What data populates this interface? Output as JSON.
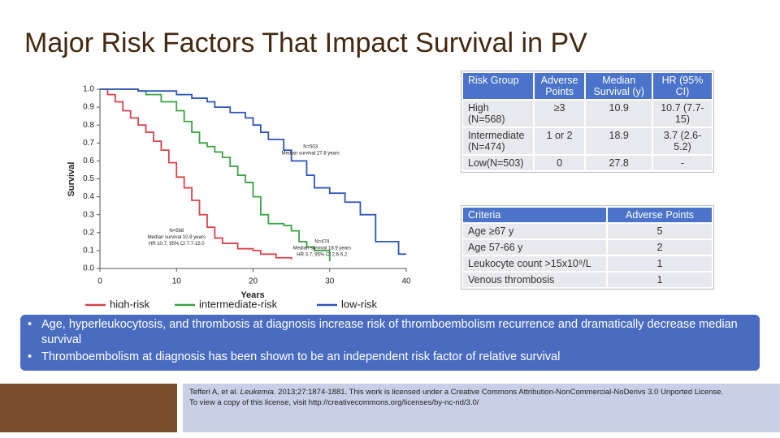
{
  "title": "Major Risk Factors That Impact Survival in PV",
  "chart_data": {
    "type": "line",
    "y_label": "Survival",
    "x_label": "Years",
    "xlim": [
      0,
      40
    ],
    "ylim": [
      0,
      1
    ],
    "xticks": [
      0,
      10,
      20,
      30,
      40
    ],
    "yticks": [
      {
        "value": 0,
        "label": "0.0"
      },
      {
        "value": 0.1,
        "label": "0.1"
      },
      {
        "value": 0.2,
        "label": "0.2"
      },
      {
        "value": 0.3,
        "label": "0.3"
      },
      {
        "value": 0.4,
        "label": "0.4"
      },
      {
        "value": 0.5,
        "label": "0.5"
      },
      {
        "value": 0.6,
        "label": "0.6"
      },
      {
        "value": 0.7,
        "label": "0.7"
      },
      {
        "value": 0.8,
        "label": "0.8"
      },
      {
        "value": 0.9,
        "label": "0.9"
      },
      {
        "value": 1,
        "label": "1.0"
      }
    ],
    "series": [
      {
        "name": "high-risk",
        "color": "#d9434b",
        "x": [
          0,
          1,
          2,
          3,
          4,
          5,
          6,
          7,
          8,
          9,
          10,
          11,
          12,
          13,
          14,
          15,
          16,
          18,
          20,
          21,
          23,
          25
        ],
        "values": [
          1,
          0.97,
          0.93,
          0.88,
          0.84,
          0.8,
          0.76,
          0.71,
          0.66,
          0.59,
          0.51,
          0.45,
          0.38,
          0.3,
          0.23,
          0.17,
          0.14,
          0.11,
          0.1,
          0.08,
          0.06,
          0.05
        ]
      },
      {
        "name": "intermediate-risk",
        "color": "#3aa346",
        "x": [
          0,
          5,
          6,
          8,
          10,
          11,
          12,
          13,
          14,
          15,
          16,
          17,
          18,
          19,
          20,
          21,
          22,
          24,
          25,
          26,
          27,
          28,
          30
        ],
        "values": [
          1,
          0.99,
          0.97,
          0.93,
          0.88,
          0.82,
          0.76,
          0.7,
          0.68,
          0.65,
          0.62,
          0.57,
          0.52,
          0.48,
          0.4,
          0.3,
          0.25,
          0.24,
          0.21,
          0.15,
          0.12,
          0.1,
          0.04
        ]
      },
      {
        "name": "low-risk",
        "color": "#2f55b8",
        "x": [
          0,
          5,
          10,
          12,
          14,
          15,
          17,
          19,
          20,
          21,
          22,
          24,
          25,
          27,
          28,
          30,
          32,
          34,
          36,
          38,
          39,
          40
        ],
        "values": [
          1,
          0.99,
          0.97,
          0.95,
          0.93,
          0.9,
          0.87,
          0.84,
          0.8,
          0.76,
          0.72,
          0.66,
          0.6,
          0.52,
          0.45,
          0.42,
          0.37,
          0.3,
          0.15,
          0.15,
          0.08,
          0.08
        ]
      }
    ],
    "annotations": [
      {
        "x": 27.5,
        "y": 0.68,
        "lines": [
          "N=503",
          "Median survival 27.8 years"
        ]
      },
      {
        "x": 10,
        "y": 0.21,
        "lines": [
          "N=568",
          "Median survival 10.9 years",
          "HR 10.7, 95% CI 7.7-15.0"
        ]
      },
      {
        "x": 29,
        "y": 0.15,
        "lines": [
          "N=474",
          "Median survival 18.9 years",
          "HR 3.7, 95% CI 2.6-5.2"
        ]
      }
    ]
  },
  "risk_table": {
    "header": [
      "Risk Group",
      "Adverse Points",
      "Median Survival (y)",
      "HR (95% CI)"
    ],
    "rows": [
      [
        "High (N=568)",
        "≥3",
        "10.9",
        "10.7 (7.7-15)"
      ],
      [
        "Intermediate (N=474)",
        "1 or 2",
        "18.9",
        "3.7 (2.6-5.2)"
      ],
      [
        "Low(N=503)",
        "0",
        "27.8",
        "-"
      ]
    ]
  },
  "criteria_table": {
    "header": [
      "Criteria",
      "Adverse Points"
    ],
    "rows": [
      [
        "Age ≥67 y",
        "5"
      ],
      [
        "Age 57-66 y",
        "2"
      ],
      [
        "Leukocyte count >15x10⁹/L",
        "1"
      ],
      [
        "Venous thrombosis",
        "1"
      ]
    ]
  },
  "bullets": [
    "Age, hyperleukocytosis, and thrombosis at diagnosis increase risk of thromboembolism recurrence and dramatically decrease median survival",
    "Thromboembolism at diagnosis has been shown to be an independent risk factor of relative survival"
  ],
  "citation": {
    "authors": "Tefferi A, et al.",
    "journal": "Leukemia.",
    "rest": "2013;27:1874-1881. This work is licensed under a Creative Commons Attribution-NonCommercial-NoDerivs 3.0 Unported License.",
    "line2": "To view a copy of this license, visit http://creativecommons.org/licenses/by-nc-nd/3.0/"
  }
}
